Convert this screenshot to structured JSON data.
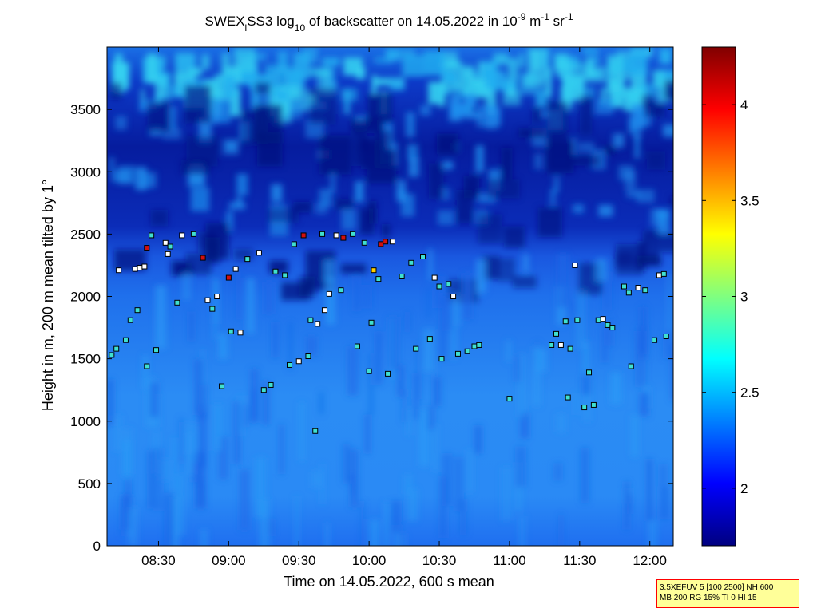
{
  "chart_data": {
    "type": "heatmap",
    "title": {
      "p1": "SWEX",
      "p1_sub": "l",
      "p2": "SS3 log",
      "p2_sub": "10",
      "p3": " of backscatter on 14.05.2022 in 10",
      "p3_sup": "-9",
      "p4": " m",
      "p4_sup": "-1",
      "p5": " sr",
      "p5_sup": "-1"
    },
    "xlabel": "Time on 14.05.2022, 600 s mean",
    "ylabel": "Height in m, 200 m mean tilted by 1°",
    "x_ticks": [
      "08:30",
      "09:00",
      "09:30",
      "10:00",
      "10:30",
      "11:00",
      "11:30",
      "12:00"
    ],
    "y_ticks": [
      "0",
      "500",
      "1000",
      "1500",
      "2000",
      "2500",
      "3000",
      "3500"
    ],
    "xlim": [
      "08:08",
      "12:10"
    ],
    "ylim": [
      0,
      4000
    ],
    "colorbar": {
      "ticks": [
        "2",
        "2.5",
        "3",
        "3.5",
        "4"
      ],
      "range": [
        1.7,
        4.3
      ],
      "colormap": "jet"
    },
    "field_description": "Low layer around 2.3-2.5 (light blue) below ~2300 m, top of boundary layer ~2000-2500 m, dark blue (~1.8) free troposphere above with scattered cyan patches (~2.6-2.7) near 3000-4000 m.",
    "cloud_base_markers": [
      {
        "t": "08:10",
        "h": 1530,
        "c": "cyan"
      },
      {
        "t": "08:12",
        "h": 1580,
        "c": "cyan"
      },
      {
        "t": "08:13",
        "h": 2210,
        "c": "white"
      },
      {
        "t": "08:16",
        "h": 1650,
        "c": "cyan"
      },
      {
        "t": "08:18",
        "h": 1810,
        "c": "cyan"
      },
      {
        "t": "08:20",
        "h": 2220,
        "c": "white"
      },
      {
        "t": "08:21",
        "h": 1890,
        "c": "cyan"
      },
      {
        "t": "08:22",
        "h": 2230,
        "c": "white"
      },
      {
        "t": "08:24",
        "h": 2240,
        "c": "white"
      },
      {
        "t": "08:25",
        "h": 2390,
        "c": "red"
      },
      {
        "t": "08:25",
        "h": 1440,
        "c": "cyan"
      },
      {
        "t": "08:27",
        "h": 2490,
        "c": "cyan"
      },
      {
        "t": "08:29",
        "h": 1570,
        "c": "cyan"
      },
      {
        "t": "08:33",
        "h": 2430,
        "c": "white"
      },
      {
        "t": "08:34",
        "h": 2340,
        "c": "white"
      },
      {
        "t": "08:35",
        "h": 2400,
        "c": "cyan"
      },
      {
        "t": "08:38",
        "h": 1950,
        "c": "cyan"
      },
      {
        "t": "08:40",
        "h": 2490,
        "c": "white"
      },
      {
        "t": "08:45",
        "h": 2500,
        "c": "cyan"
      },
      {
        "t": "08:49",
        "h": 2310,
        "c": "red"
      },
      {
        "t": "08:51",
        "h": 1970,
        "c": "white"
      },
      {
        "t": "08:53",
        "h": 1900,
        "c": "cyan"
      },
      {
        "t": "08:55",
        "h": 2000,
        "c": "white"
      },
      {
        "t": "08:57",
        "h": 1280,
        "c": "cyan"
      },
      {
        "t": "09:00",
        "h": 2150,
        "c": "red"
      },
      {
        "t": "09:01",
        "h": 1720,
        "c": "cyan"
      },
      {
        "t": "09:03",
        "h": 2220,
        "c": "white"
      },
      {
        "t": "09:05",
        "h": 1710,
        "c": "white"
      },
      {
        "t": "09:08",
        "h": 2300,
        "c": "cyan"
      },
      {
        "t": "09:13",
        "h": 2350,
        "c": "white"
      },
      {
        "t": "09:15",
        "h": 1250,
        "c": "cyan"
      },
      {
        "t": "09:18",
        "h": 1290,
        "c": "cyan"
      },
      {
        "t": "09:20",
        "h": 2200,
        "c": "cyan"
      },
      {
        "t": "09:24",
        "h": 2170,
        "c": "cyan"
      },
      {
        "t": "09:26",
        "h": 1450,
        "c": "cyan"
      },
      {
        "t": "09:28",
        "h": 2420,
        "c": "cyan"
      },
      {
        "t": "09:30",
        "h": 1480,
        "c": "white"
      },
      {
        "t": "09:32",
        "h": 2490,
        "c": "red"
      },
      {
        "t": "09:34",
        "h": 1520,
        "c": "cyan"
      },
      {
        "t": "09:35",
        "h": 1810,
        "c": "cyan"
      },
      {
        "t": "09:37",
        "h": 920,
        "c": "cyan"
      },
      {
        "t": "09:38",
        "h": 1780,
        "c": "white"
      },
      {
        "t": "09:40",
        "h": 2500,
        "c": "cyan"
      },
      {
        "t": "09:41",
        "h": 1890,
        "c": "white"
      },
      {
        "t": "09:43",
        "h": 2020,
        "c": "white"
      },
      {
        "t": "09:46",
        "h": 2490,
        "c": "white"
      },
      {
        "t": "09:48",
        "h": 2050,
        "c": "cyan"
      },
      {
        "t": "09:49",
        "h": 2470,
        "c": "red"
      },
      {
        "t": "09:53",
        "h": 2500,
        "c": "cyan"
      },
      {
        "t": "09:55",
        "h": 1600,
        "c": "cyan"
      },
      {
        "t": "09:58",
        "h": 2430,
        "c": "cyan"
      },
      {
        "t": "10:00",
        "h": 1400,
        "c": "cyan"
      },
      {
        "t": "10:01",
        "h": 1790,
        "c": "cyan"
      },
      {
        "t": "10:02",
        "h": 2210,
        "c": "yellow"
      },
      {
        "t": "10:04",
        "h": 2140,
        "c": "cyan"
      },
      {
        "t": "10:05",
        "h": 2420,
        "c": "red"
      },
      {
        "t": "10:07",
        "h": 2440,
        "c": "red"
      },
      {
        "t": "10:08",
        "h": 1380,
        "c": "cyan"
      },
      {
        "t": "10:10",
        "h": 2440,
        "c": "white"
      },
      {
        "t": "10:14",
        "h": 2160,
        "c": "cyan"
      },
      {
        "t": "10:18",
        "h": 2270,
        "c": "cyan"
      },
      {
        "t": "10:20",
        "h": 1580,
        "c": "cyan"
      },
      {
        "t": "10:23",
        "h": 2320,
        "c": "cyan"
      },
      {
        "t": "10:26",
        "h": 1660,
        "c": "cyan"
      },
      {
        "t": "10:28",
        "h": 2150,
        "c": "white"
      },
      {
        "t": "10:30",
        "h": 2080,
        "c": "cyan"
      },
      {
        "t": "10:31",
        "h": 1500,
        "c": "cyan"
      },
      {
        "t": "10:34",
        "h": 2100,
        "c": "cyan"
      },
      {
        "t": "10:36",
        "h": 2000,
        "c": "white"
      },
      {
        "t": "10:38",
        "h": 1540,
        "c": "cyan"
      },
      {
        "t": "10:42",
        "h": 1560,
        "c": "cyan"
      },
      {
        "t": "10:45",
        "h": 1600,
        "c": "cyan"
      },
      {
        "t": "10:47",
        "h": 1610,
        "c": "cyan"
      },
      {
        "t": "11:00",
        "h": 1180,
        "c": "cyan"
      },
      {
        "t": "11:18",
        "h": 1610,
        "c": "cyan"
      },
      {
        "t": "11:20",
        "h": 1700,
        "c": "cyan"
      },
      {
        "t": "11:22",
        "h": 1610,
        "c": "white"
      },
      {
        "t": "11:24",
        "h": 1800,
        "c": "cyan"
      },
      {
        "t": "11:25",
        "h": 1190,
        "c": "cyan"
      },
      {
        "t": "11:26",
        "h": 1580,
        "c": "cyan"
      },
      {
        "t": "11:28",
        "h": 2250,
        "c": "white"
      },
      {
        "t": "11:29",
        "h": 1810,
        "c": "cyan"
      },
      {
        "t": "11:32",
        "h": 1110,
        "c": "cyan"
      },
      {
        "t": "11:34",
        "h": 1390,
        "c": "cyan"
      },
      {
        "t": "11:36",
        "h": 1130,
        "c": "cyan"
      },
      {
        "t": "11:38",
        "h": 1810,
        "c": "cyan"
      },
      {
        "t": "11:40",
        "h": 1820,
        "c": "white"
      },
      {
        "t": "11:42",
        "h": 1770,
        "c": "cyan"
      },
      {
        "t": "11:44",
        "h": 1750,
        "c": "cyan"
      },
      {
        "t": "11:49",
        "h": 2080,
        "c": "cyan"
      },
      {
        "t": "11:51",
        "h": 2030,
        "c": "cyan"
      },
      {
        "t": "11:52",
        "h": 1440,
        "c": "cyan"
      },
      {
        "t": "11:55",
        "h": 2070,
        "c": "white"
      },
      {
        "t": "11:58",
        "h": 2050,
        "c": "cyan"
      },
      {
        "t": "12:02",
        "h": 1650,
        "c": "cyan"
      },
      {
        "t": "12:04",
        "h": 2170,
        "c": "white"
      },
      {
        "t": "12:06",
        "h": 2180,
        "c": "cyan"
      },
      {
        "t": "12:07",
        "h": 1680,
        "c": "cyan"
      }
    ]
  },
  "note": {
    "line1": "3.5XEFUV 5 [100 2500] NH 600",
    "line2": "MB 200 RG 15% TI 0 HI 15"
  },
  "colors": {
    "marker_cyan": "#40e0d0",
    "marker_white": "#ffffff",
    "marker_red": "#d01010",
    "marker_yellow": "#ffd000",
    "note_bg": "#ffff99",
    "note_border": "#ff0000"
  }
}
